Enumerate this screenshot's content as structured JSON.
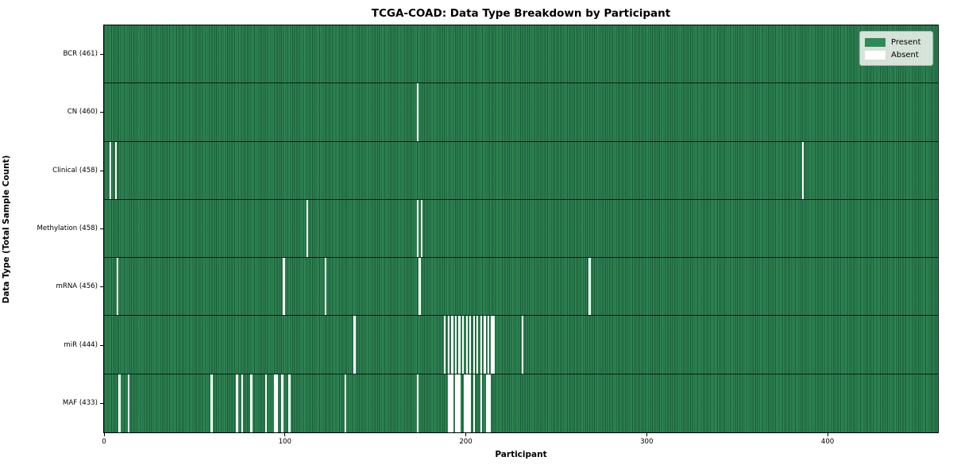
{
  "figure": {
    "title": "TCGA-COAD: Data Type Breakdown by Participant",
    "xlabel": "Participant",
    "ylabel": "Data Type (Total Sample Count)"
  },
  "legend": {
    "present_label": "Present",
    "absent_label": "Absent"
  },
  "colors": {
    "present": "#2E8B57",
    "absent": "#FFFFFF",
    "bar_edge": "rgba(0,0,0,0.38)",
    "row_divider": "#0d2014",
    "spine": "#000000"
  },
  "chart_data": {
    "type": "heatmap",
    "title": "TCGA-COAD: Data Type Breakdown by Participant",
    "xlabel": "Participant",
    "ylabel": "Data Type (Total Sample Count)",
    "n_participants": 461,
    "x_ticks": [
      0,
      100,
      200,
      300,
      400
    ],
    "legend_position": "upper right",
    "grid": false,
    "cell_states": [
      "Present",
      "Absent"
    ],
    "legend": [
      {
        "label": "Present",
        "color": "#2E8B57"
      },
      {
        "label": "Absent",
        "color": "#FFFFFF"
      }
    ],
    "rows": [
      {
        "label": "BCR (461)",
        "data_type": "BCR",
        "total": 461,
        "absent_count": 0,
        "absent_participants": []
      },
      {
        "label": "CN (460)",
        "data_type": "CN",
        "total": 460,
        "absent_count": 1,
        "absent_participants": [
          173
        ]
      },
      {
        "label": "Clinical (458)",
        "data_type": "Clinical",
        "total": 458,
        "absent_count": 3,
        "absent_participants": [
          3,
          6,
          386
        ]
      },
      {
        "label": "Methylation (458)",
        "data_type": "Methylation",
        "total": 458,
        "absent_count": 3,
        "absent_participants": [
          112,
          173,
          175
        ]
      },
      {
        "label": "mRNA (456)",
        "data_type": "mRNA",
        "total": 456,
        "absent_count": 5,
        "absent_participants": [
          7,
          99,
          122,
          174,
          268
        ]
      },
      {
        "label": "miR (444)",
        "data_type": "miR",
        "total": 444,
        "absent_count": 17,
        "absent_participants": [
          138,
          188,
          190,
          192,
          194,
          196,
          198,
          200,
          202,
          204,
          206,
          208,
          210,
          212,
          214,
          215,
          231
        ]
      },
      {
        "label": "MAF (433)",
        "data_type": "MAF",
        "total": 433,
        "absent_count": 28,
        "absent_participants": [
          8,
          13,
          59,
          73,
          76,
          81,
          89,
          94,
          95,
          98,
          102,
          133,
          173,
          190,
          191,
          192,
          194,
          195,
          196,
          199,
          200,
          201,
          202,
          204,
          208,
          211,
          212,
          213
        ]
      }
    ]
  }
}
